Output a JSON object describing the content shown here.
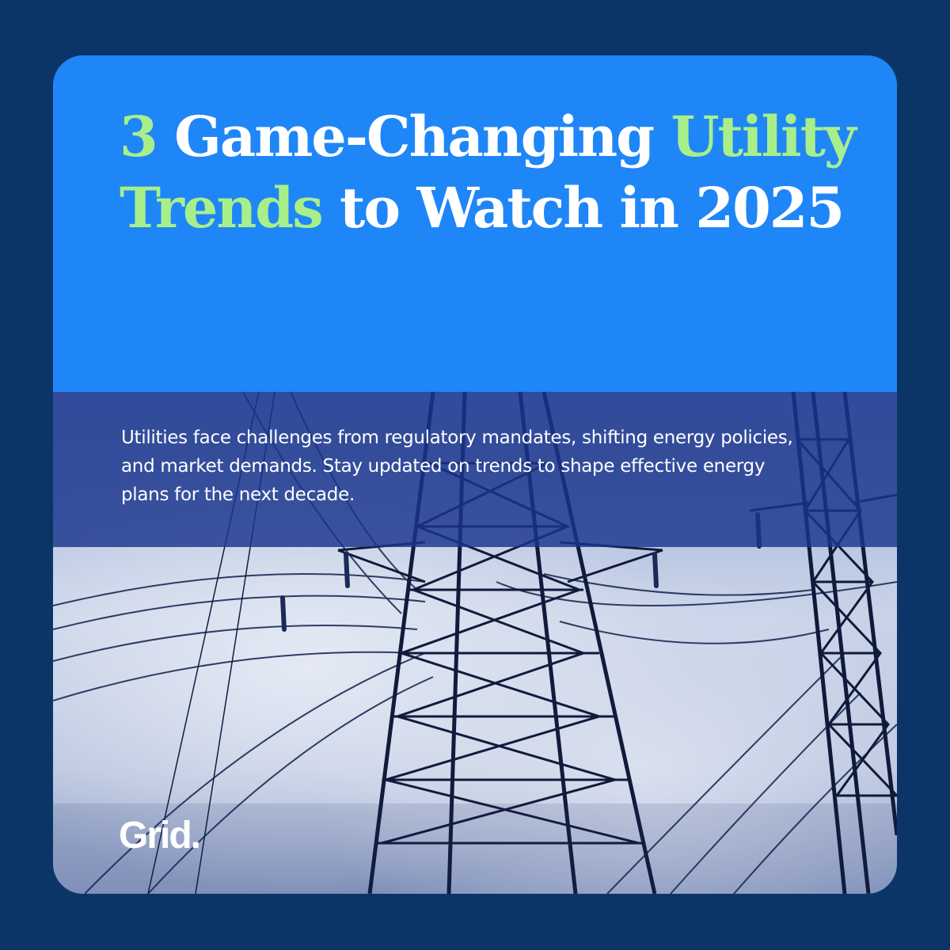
{
  "headline": {
    "part1": "3",
    "part2": " Game-Changing ",
    "part3": "Utility Trends",
    "part4": " to Watch in 2025"
  },
  "intro": "Utilities face challenges from regulatory mandates, shifting energy policies, and market demands. Stay updated on trends to shape effective energy plans for the next decade.",
  "brand": "Grid.",
  "photo_subject": "electricity-pylons-power-lines",
  "colors": {
    "page_background": "#0c3567",
    "hero_blue": "#1f86f7",
    "accent_green": "#a8ef8a",
    "band_navy": "#1a348c",
    "text_white": "#ffffff"
  }
}
